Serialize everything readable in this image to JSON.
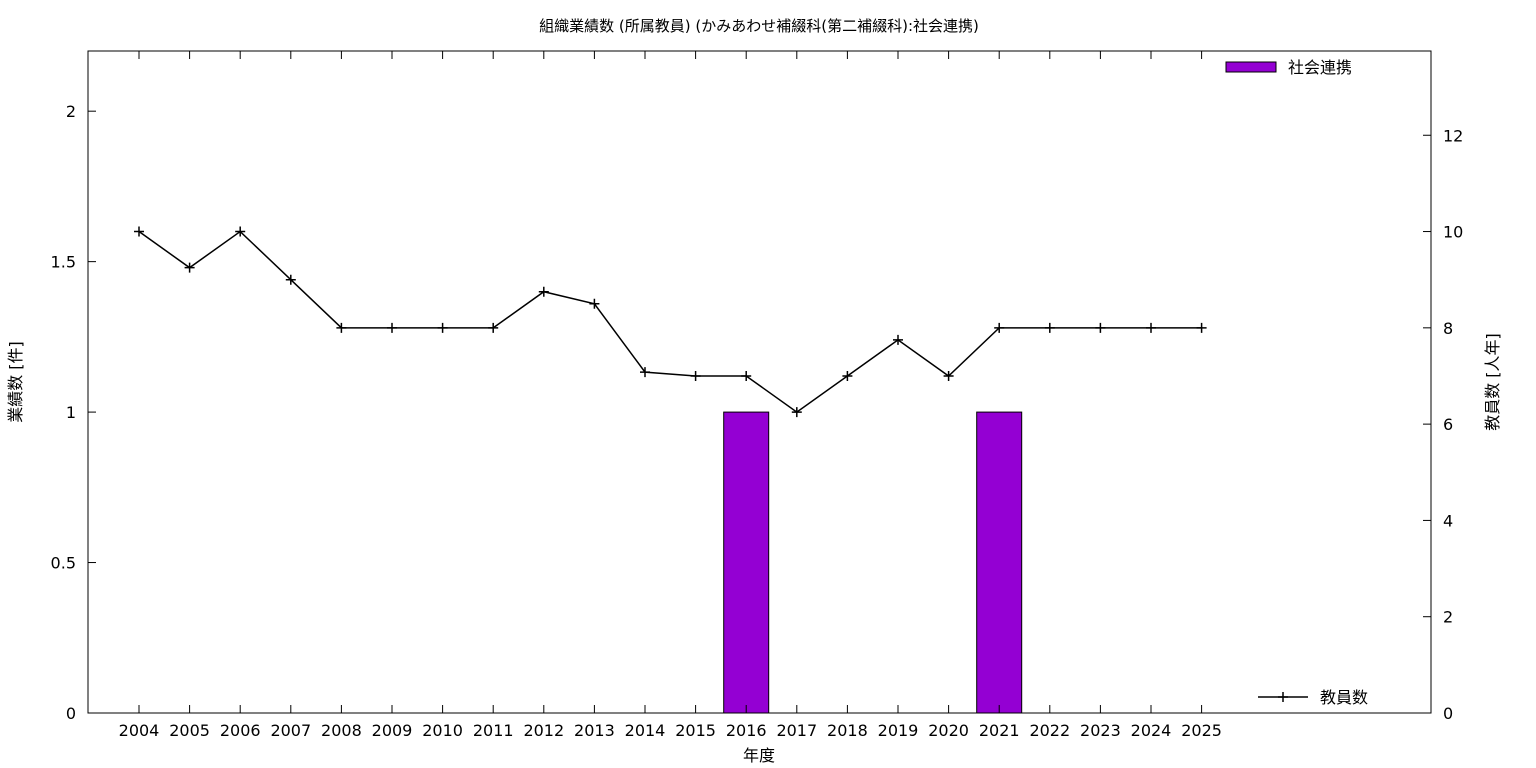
{
  "chart_data": {
    "type": "bar",
    "title": "組織業績数 (所属教員) (かみあわせ補綴科(第二補綴科):社会連携)",
    "xlabel": "年度",
    "ylabel_left": "業績数 [件]",
    "ylabel_right": "教員数 [人年]",
    "categories": [
      "2004",
      "2005",
      "2006",
      "2007",
      "2008",
      "2009",
      "2010",
      "2011",
      "2012",
      "2013",
      "2014",
      "2015",
      "2016",
      "2017",
      "2018",
      "2019",
      "2020",
      "2021",
      "2022",
      "2023",
      "2024",
      "2025"
    ],
    "series": [
      {
        "name": "社会連携",
        "type": "bar",
        "axis": "left",
        "color": "#9400d3",
        "values": [
          0,
          0,
          0,
          0,
          0,
          0,
          0,
          0,
          0,
          0,
          0,
          0,
          1,
          0,
          0,
          0,
          0,
          1,
          0,
          0,
          0,
          0
        ]
      },
      {
        "name": "教員数",
        "type": "line",
        "axis": "right",
        "color": "#000000",
        "values": [
          10,
          9.25,
          10,
          9,
          8,
          8,
          8,
          8,
          8.75,
          8.5,
          7.08,
          7,
          7,
          6.25,
          7,
          7.75,
          7,
          8,
          8,
          8,
          8,
          8
        ]
      }
    ],
    "y_left": {
      "min": 0,
      "max": 2.2,
      "ticks": [
        0,
        0.5,
        1,
        1.5,
        2
      ],
      "tick_labels": [
        "0",
        "0.5",
        "1",
        "1.5",
        "2"
      ]
    },
    "y_right": {
      "min": 0,
      "max": 13.75,
      "ticks": [
        0,
        2,
        4,
        6,
        8,
        10,
        12
      ],
      "tick_labels": [
        "0",
        "2",
        "4",
        "6",
        "8",
        "10",
        "12"
      ]
    },
    "grid": false,
    "legend": [
      {
        "label": "社会連携",
        "position": "top-right"
      },
      {
        "label": "教員数",
        "position": "bottom-right"
      }
    ]
  }
}
